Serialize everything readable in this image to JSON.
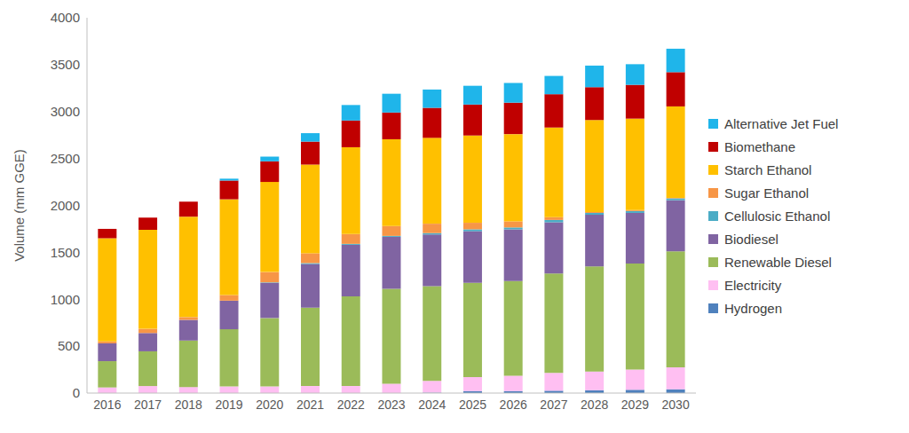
{
  "chart_data": {
    "type": "bar",
    "stacked": true,
    "grid": false,
    "legend": "right",
    "y_label": "Volume (mm GGE)",
    "categories": [
      "2016",
      "2017",
      "2018",
      "2019",
      "2020",
      "2021",
      "2022",
      "2023",
      "2024",
      "2025",
      "2026",
      "2027",
      "2028",
      "2029",
      "2030"
    ],
    "ylim": [
      0,
      4000
    ],
    "yticks": [
      0,
      500,
      1000,
      1500,
      2000,
      2500,
      3000,
      3500,
      4000
    ],
    "series": [
      {
        "name": "Alternative Jet Fuel",
        "color": "#1fb5ea",
        "values": [
          0,
          0,
          0,
          20,
          50,
          90,
          165,
          200,
          195,
          200,
          210,
          195,
          230,
          220,
          250
        ]
      },
      {
        "name": "Biomethane",
        "color": "#c00000",
        "values": [
          100,
          130,
          160,
          200,
          220,
          245,
          285,
          285,
          320,
          330,
          335,
          355,
          350,
          360,
          365
        ]
      },
      {
        "name": "Starch Ethanol",
        "color": "#ffc000",
        "values": [
          1100,
          1055,
          1070,
          1020,
          960,
          945,
          925,
          925,
          915,
          930,
          930,
          955,
          980,
          975,
          975
        ]
      },
      {
        "name": "Sugar Ethanol",
        "color": "#f79646",
        "values": [
          20,
          45,
          30,
          60,
          110,
          105,
          105,
          105,
          100,
          70,
          65,
          30,
          10,
          10,
          5
        ]
      },
      {
        "name": "Cellulosic Ethanol",
        "color": "#4bacc6",
        "values": [
          0,
          0,
          0,
          0,
          5,
          10,
          10,
          10,
          15,
          20,
          20,
          25,
          20,
          20,
          20
        ]
      },
      {
        "name": "Biodiesel",
        "color": "#8064a2",
        "values": [
          190,
          195,
          220,
          305,
          375,
          465,
          550,
          555,
          550,
          550,
          550,
          545,
          550,
          540,
          545
        ]
      },
      {
        "name": "Renewable Diesel",
        "color": "#9bbb59",
        "values": [
          280,
          370,
          495,
          610,
          730,
          835,
          955,
          1010,
          1010,
          1005,
          1010,
          1060,
          1120,
          1130,
          1235
        ]
      },
      {
        "name": "Electricity",
        "color": "#ffbff2",
        "values": [
          60,
          75,
          65,
          70,
          70,
          75,
          75,
          100,
          125,
          150,
          165,
          190,
          200,
          215,
          235
        ]
      },
      {
        "name": "Hydrogen",
        "color": "#4f81bd",
        "values": [
          0,
          0,
          0,
          0,
          0,
          0,
          0,
          0,
          5,
          20,
          20,
          25,
          30,
          35,
          40
        ]
      }
    ]
  }
}
